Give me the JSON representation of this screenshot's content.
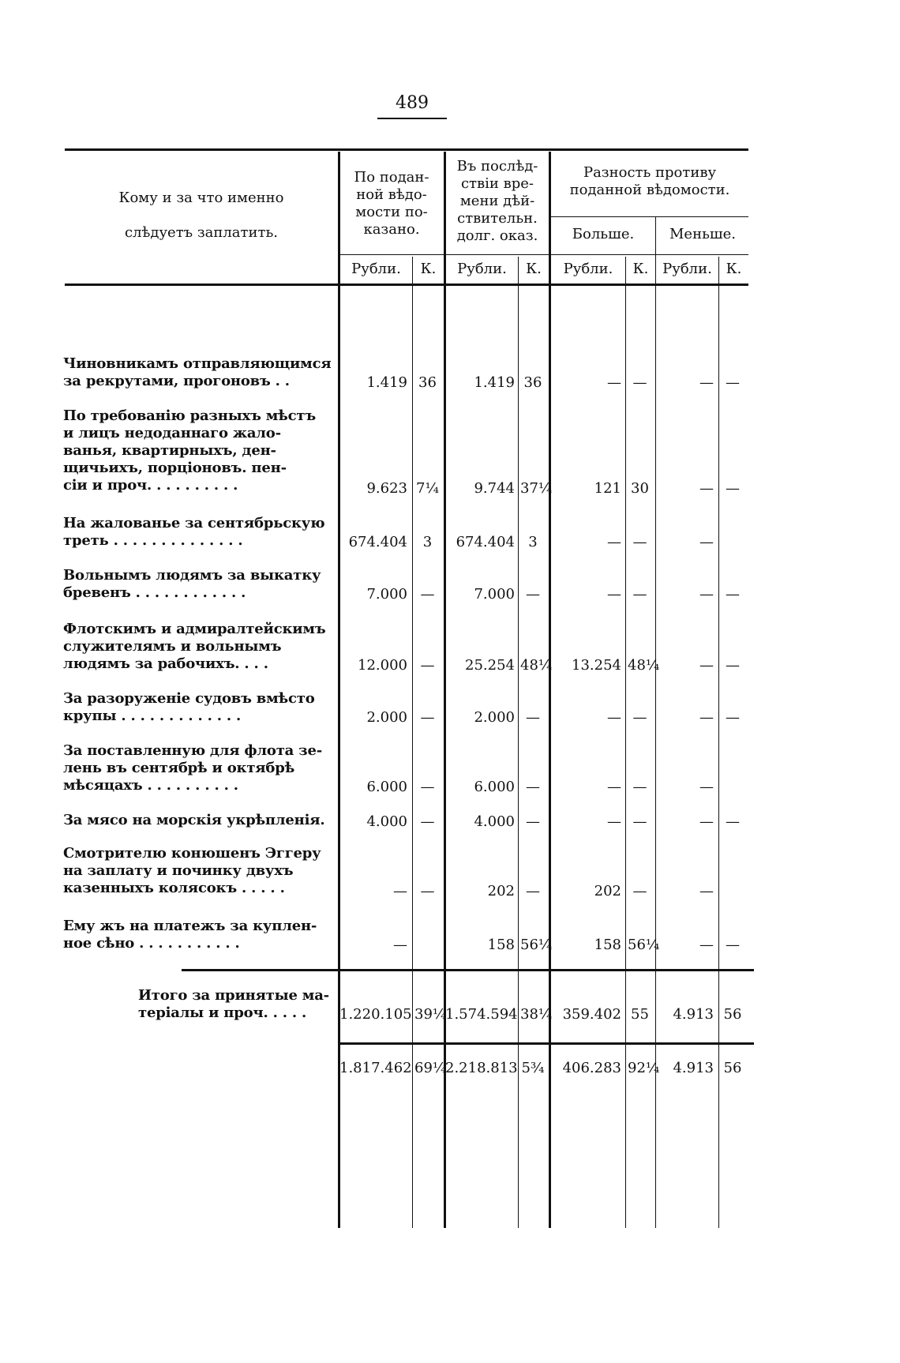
{
  "page_number": "489",
  "header": {
    "col_label": "Кому и за что именно\n\nслѣдуетъ заплатить.",
    "col1": "По подан-\nной вѣдо-\nмости по-\nказано.",
    "col2": "Въ послѣд-\nствіи вре-\nмени дѣй-\nствительн.\nдолг. оказ.",
    "diff": "Разность противу\nподанной вѣдомости.",
    "more": "Больше.",
    "less": "Меньше.",
    "rub": "Рубли.",
    "kop": "К."
  },
  "rows": [
    {
      "label": "Чиновникамъ отправляющимся\n    за рекрутами, прогоновъ . .",
      "v": [
        "1.419",
        "36",
        "1.419",
        "36",
        "—",
        "—",
        "—",
        "—"
      ]
    },
    {
      "label": "По требованію разныхъ мѣстъ\n    и лицъ недоданнаго жало-\n    ванья, квартирныхъ, ден-\n    щичьихъ, порціоновъ. пен-\n    сіи и проч. . . . . . . . . .",
      "v": [
        "9.623",
        "7¼",
        "9.744",
        "37¼",
        "121",
        "30",
        "—",
        "—"
      ]
    },
    {
      "label": "На жалованье за сентябрьскую\n    треть . . . . . . . . . . . . . .",
      "v": [
        "674.404",
        "3",
        "674.404",
        "3",
        "—",
        "—",
        "—",
        ""
      ]
    },
    {
      "label": "Вольнымъ людямъ за выкатку\n    бревенъ . . . . . . . . . . . .",
      "v": [
        "7.000",
        "—",
        "7.000",
        "—",
        "—",
        "—",
        "—",
        "—"
      ]
    },
    {
      "label": "Флотскимъ и адмиралтейскимъ\n    служителямъ и вольнымъ\n    людямъ за рабочихъ. . . .",
      "v": [
        "12.000",
        "—",
        "25.254",
        "48¼",
        "13.254",
        "48¼",
        "—",
        "—"
      ]
    },
    {
      "label": "За разоруженіе судовъ вмѣсто\n    крупы . . . . . . . . . . . . .",
      "v": [
        "2.000",
        "—",
        "2.000",
        "—",
        "—",
        "—",
        "—",
        "—"
      ]
    },
    {
      "label": "За поставленную для флота зе-\n    лень въ сентябрѣ и октябрѣ\n    мѣсяцахъ . . . . . . . . . .",
      "v": [
        "6.000",
        "—",
        "6.000",
        "—",
        "—",
        "—",
        "—",
        ""
      ]
    },
    {
      "label": "За мясо на морскія укрѣпленія.",
      "v": [
        "4.000",
        "—",
        "4.000",
        "—",
        "—",
        "—",
        "—",
        "—"
      ]
    },
    {
      "label": "Смотрителю конюшенъ Эггеру\n    на заплату и починку двухъ\n    казенныхъ колясокъ . . . . .",
      "v": [
        "—",
        "—",
        "202",
        "—",
        "202",
        "—",
        "—",
        ""
      ]
    },
    {
      "label": "Ему жъ на платежъ за куплен-\n    ное сѣно . . . . . . . . . . .",
      "v": [
        "—",
        "",
        "158",
        "56¼",
        "158",
        "56¼",
        "—",
        "—"
      ]
    }
  ],
  "subtotal": {
    "label": "Итого за принятые ма-\nтеріалы и проч.  . . . .",
    "v": [
      "1.220.105",
      "39¼",
      "1.574.594",
      "38¼",
      "359.402",
      "55",
      "4.913",
      "56"
    ]
  },
  "total": {
    "v": [
      "1.817.462",
      "69¼",
      "2.218.813",
      "5¾",
      "406.283",
      "92¼",
      "4.913",
      "56"
    ]
  }
}
